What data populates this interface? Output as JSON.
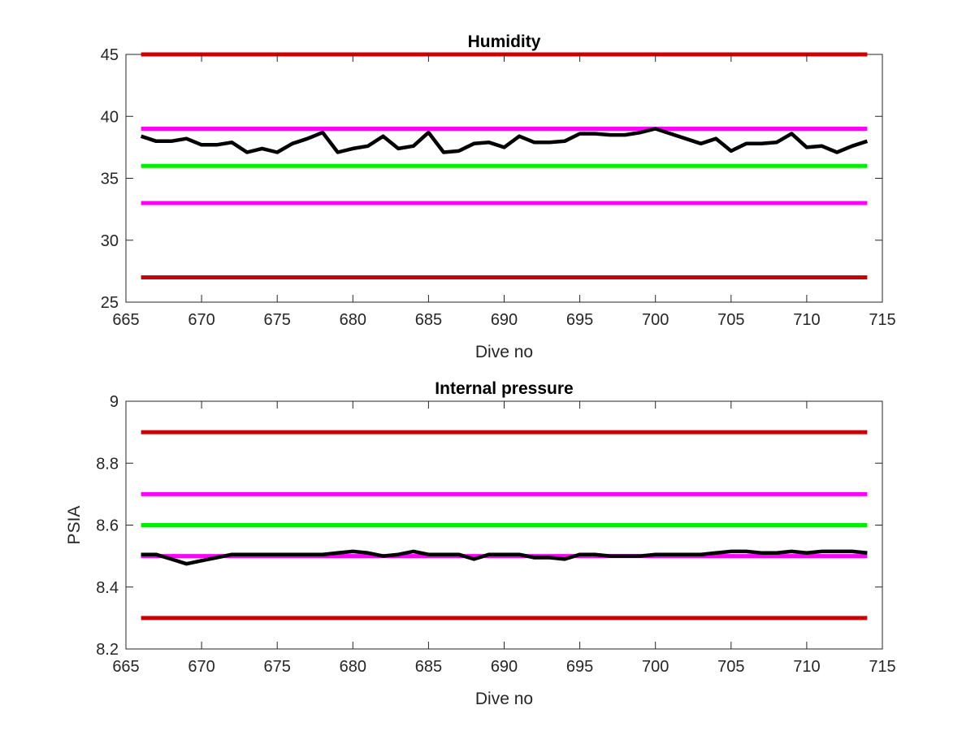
{
  "colors": {
    "black": "#000000",
    "red": "#cc0000",
    "magenta": "#ff00ff",
    "green": "#00ee00",
    "axis": "#262626"
  },
  "chart_data": [
    {
      "type": "line",
      "title": "Humidity",
      "xlabel": "Dive no",
      "ylabel": "",
      "xlim": [
        665,
        715
      ],
      "ylim": [
        25,
        45
      ],
      "xticks": [
        "665",
        "670",
        "675",
        "680",
        "685",
        "690",
        "695",
        "700",
        "705",
        "710",
        "715"
      ],
      "yticks": [
        "25",
        "30",
        "35",
        "40",
        "45"
      ],
      "grid": false,
      "reference_lines": [
        {
          "color": "red",
          "y": 45
        },
        {
          "color": "magenta",
          "y": 39
        },
        {
          "color": "green",
          "y": 36
        },
        {
          "color": "magenta",
          "y": 33
        },
        {
          "color": "red",
          "y": 27
        }
      ],
      "x": [
        666,
        667,
        668,
        669,
        670,
        671,
        672,
        673,
        674,
        675,
        676,
        677,
        678,
        679,
        680,
        681,
        682,
        683,
        684,
        685,
        686,
        687,
        688,
        689,
        690,
        691,
        692,
        693,
        694,
        695,
        696,
        697,
        698,
        699,
        700,
        701,
        702,
        703,
        704,
        705,
        706,
        707,
        708,
        709,
        710,
        711,
        712,
        713,
        714
      ],
      "series": [
        {
          "color": "black",
          "values": [
            38.4,
            38.0,
            38.0,
            38.2,
            37.7,
            37.7,
            37.9,
            37.1,
            37.4,
            37.1,
            37.8,
            38.2,
            38.7,
            37.1,
            37.4,
            37.6,
            38.4,
            37.4,
            37.6,
            38.7,
            37.1,
            37.2,
            37.8,
            37.9,
            37.5,
            38.4,
            37.9,
            37.9,
            38.0,
            38.6,
            38.6,
            38.5,
            38.5,
            38.7,
            39.0,
            38.6,
            38.2,
            37.8,
            38.2,
            37.2,
            37.8,
            37.8,
            37.9,
            38.6,
            37.5,
            37.6,
            37.1,
            37.6,
            38.0
          ]
        }
      ]
    },
    {
      "type": "line",
      "title": "Internal pressure",
      "xlabel": "Dive no",
      "ylabel": "PSIA",
      "xlim": [
        665,
        715
      ],
      "ylim": [
        8.2,
        9.0
      ],
      "xticks": [
        "665",
        "670",
        "675",
        "680",
        "685",
        "690",
        "695",
        "700",
        "705",
        "710",
        "715"
      ],
      "yticks": [
        "8.2",
        "8.4",
        "8.6",
        "8.8",
        "9"
      ],
      "grid": false,
      "reference_lines": [
        {
          "color": "red",
          "y": 8.9
        },
        {
          "color": "magenta",
          "y": 8.7
        },
        {
          "color": "green",
          "y": 8.6
        },
        {
          "color": "magenta",
          "y": 8.5
        },
        {
          "color": "red",
          "y": 8.3
        }
      ],
      "x": [
        666,
        667,
        668,
        669,
        670,
        671,
        672,
        673,
        674,
        675,
        676,
        677,
        678,
        679,
        680,
        681,
        682,
        683,
        684,
        685,
        686,
        687,
        688,
        689,
        690,
        691,
        692,
        693,
        694,
        695,
        696,
        697,
        698,
        699,
        700,
        701,
        702,
        703,
        704,
        705,
        706,
        707,
        708,
        709,
        710,
        711,
        712,
        713,
        714
      ],
      "series": [
        {
          "color": "black",
          "values": [
            8.505,
            8.505,
            8.49,
            8.475,
            8.485,
            8.495,
            8.505,
            8.505,
            8.505,
            8.505,
            8.505,
            8.505,
            8.505,
            8.51,
            8.515,
            8.51,
            8.5,
            8.505,
            8.515,
            8.505,
            8.505,
            8.505,
            8.49,
            8.505,
            8.505,
            8.505,
            8.495,
            8.495,
            8.49,
            8.505,
            8.505,
            8.5,
            8.5,
            8.5,
            8.505,
            8.505,
            8.505,
            8.505,
            8.51,
            8.515,
            8.515,
            8.51,
            8.51,
            8.515,
            8.51,
            8.515,
            8.515,
            8.515,
            8.51
          ]
        }
      ]
    }
  ]
}
